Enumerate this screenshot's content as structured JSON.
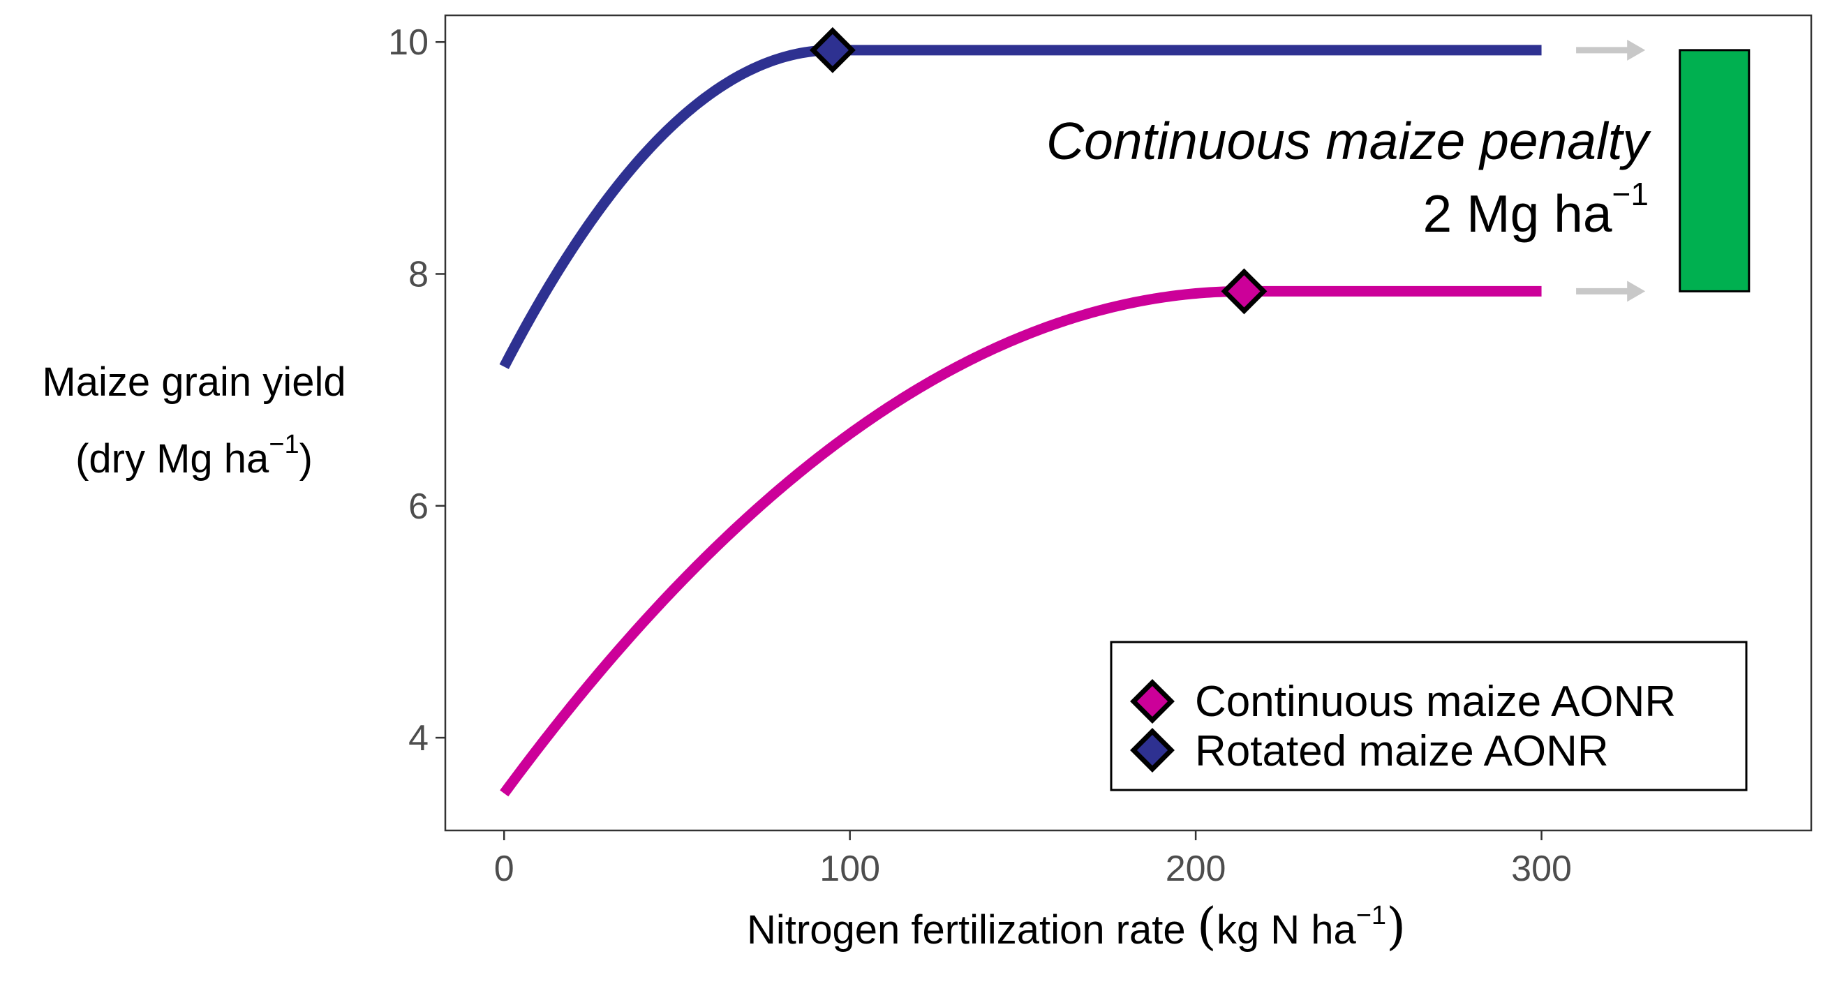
{
  "chart_data": {
    "type": "line",
    "xlabel": "Nitrogen fertilization rate (kg N ha⁻¹)",
    "xlabel_main": "Nitrogen fertilization rate ",
    "xlabel_unit": "kg N ha",
    "xlabel_exp": "−1",
    "ylabel_line1": "Maize grain yield",
    "ylabel_line2_main": "(dry Mg  ha",
    "ylabel_line2_exp": "−1",
    "ylabel_line2_close": ")",
    "xlim": [
      -17,
      378
    ],
    "ylim": [
      3.2,
      10.23
    ],
    "xticks": [
      0,
      100,
      200,
      300
    ],
    "yticks": [
      4,
      6,
      8,
      10
    ],
    "grid": false,
    "series": [
      {
        "name": "Continuous maize AONR",
        "color": "#CC0099",
        "intercept": 3.52,
        "aonr": 214,
        "plateau": 7.85,
        "x_end": 300
      },
      {
        "name": "Rotated maize AONR",
        "color": "#2E3191",
        "intercept": 7.2,
        "aonr": 95,
        "plateau": 9.93,
        "x_end": 300
      }
    ],
    "arrows": {
      "x_start": 310,
      "x_end": 330,
      "color": "#C8C8C8"
    },
    "penalty_bar": {
      "x_start": 340,
      "x_end": 360,
      "y_low": 7.85,
      "y_high": 9.93,
      "color": "#00B050"
    },
    "annotation": {
      "line1": "Continuous maize penalty",
      "line2_main": "2 Mg ha",
      "line2_exp": "−1"
    },
    "legend": {
      "position": "bottom-right"
    }
  }
}
